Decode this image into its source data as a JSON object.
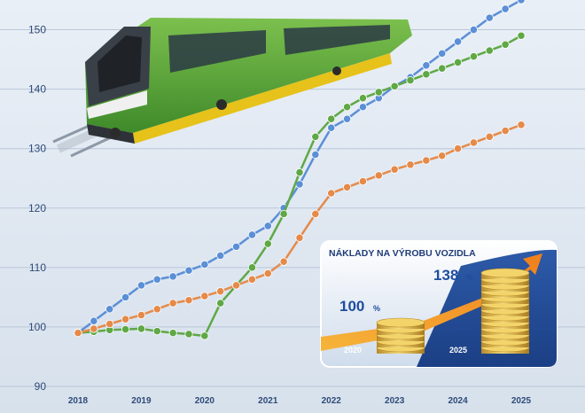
{
  "chart_data": {
    "type": "line",
    "x": [
      2018,
      2018.25,
      2018.5,
      2018.75,
      2019,
      2019.25,
      2019.5,
      2019.75,
      2020,
      2020.25,
      2020.5,
      2020.75,
      2021,
      2021.25,
      2021.5,
      2021.75,
      2022,
      2022.25,
      2022.5,
      2022.75,
      2023,
      2023.25,
      2023.5,
      2023.75,
      2024,
      2024.25,
      2024.5,
      2024.75,
      2025
    ],
    "x_ticks": [
      2018,
      2019,
      2020,
      2021,
      2022,
      2023,
      2024,
      2025
    ],
    "ylim": [
      90,
      155
    ],
    "y_ticks": [
      90,
      100,
      110,
      120,
      130,
      140,
      150
    ],
    "grid": true,
    "legend": "none",
    "series": [
      {
        "name": "blue",
        "color": "#5b8fd6",
        "values": [
          99,
          101,
          103,
          105,
          107,
          108,
          108.5,
          109.5,
          110.5,
          112,
          113.5,
          115.5,
          117,
          120,
          124,
          129,
          133.5,
          135,
          137,
          138.5,
          140.5,
          142,
          144,
          146,
          148,
          150,
          152,
          153.5,
          155
        ]
      },
      {
        "name": "green",
        "color": "#5fa846",
        "values": [
          99,
          99.2,
          99.5,
          99.6,
          99.7,
          99.3,
          99,
          98.8,
          98.5,
          104,
          107,
          110,
          114,
          119,
          126,
          132,
          135,
          137,
          138.5,
          139.5,
          140.5,
          141.5,
          142.5,
          143.5,
          144.5,
          145.5,
          146.5,
          147.5,
          149
        ]
      },
      {
        "name": "orange",
        "color": "#e58a4a",
        "values": [
          99,
          99.7,
          100.5,
          101.3,
          102,
          103,
          104,
          104.5,
          105.2,
          106,
          107,
          108,
          109,
          111,
          115,
          119,
          122.5,
          123.5,
          124.5,
          125.5,
          126.5,
          127.3,
          128,
          128.8,
          130,
          131,
          132,
          133,
          134
        ]
      }
    ],
    "inset": {
      "title": "NÁKLADY NA VÝROBU VOZIDLA",
      "start_value": "100",
      "start_unit": "%",
      "start_year": "2020",
      "end_value": "138",
      "end_unit": "%",
      "end_year": "2025"
    }
  }
}
